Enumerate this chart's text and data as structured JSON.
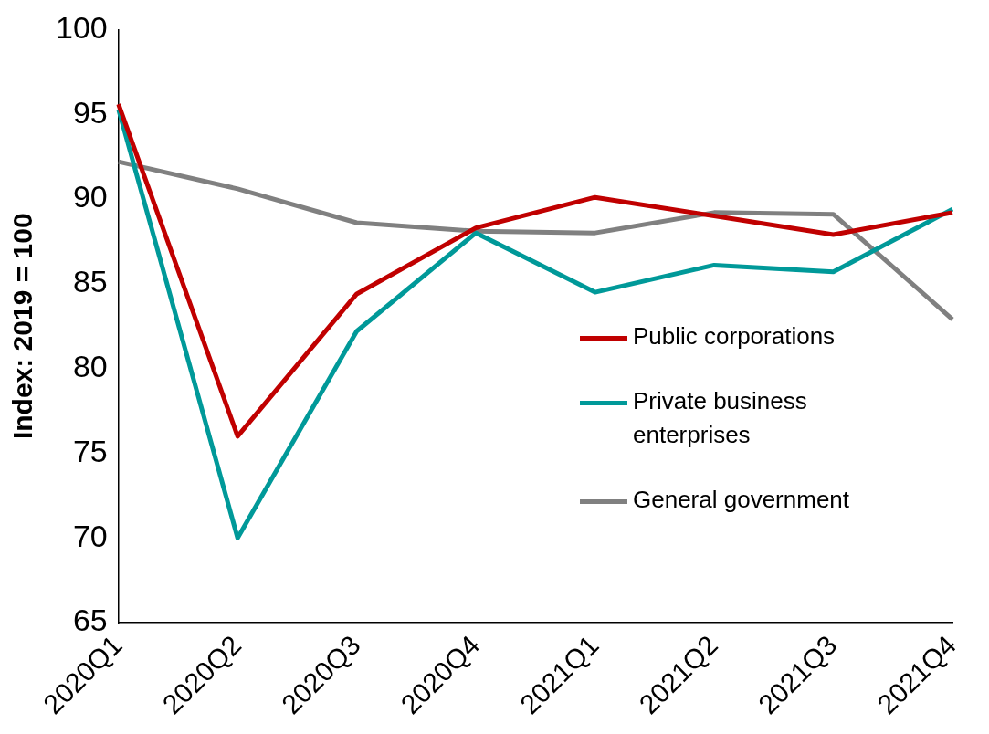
{
  "chart_data": {
    "type": "line",
    "ylabel": "Index: 2019 = 100",
    "categories": [
      "2020Q1",
      "2020Q2",
      "2020Q3",
      "2020Q4",
      "2021Q1",
      "2021Q2",
      "2021Q3",
      "2021Q4"
    ],
    "series": [
      {
        "name": "Public corporations",
        "color": "#c00000",
        "values": [
          95.6,
          76.0,
          84.4,
          88.3,
          90.1,
          89.0,
          87.9,
          89.2
        ]
      },
      {
        "name": "Private business enterprises",
        "color": "#009999",
        "values": [
          95.3,
          70.0,
          82.2,
          88.0,
          84.5,
          86.1,
          85.7,
          89.4
        ]
      },
      {
        "name": "General government",
        "color": "#808080",
        "values": [
          92.2,
          90.6,
          88.6,
          88.1,
          88.0,
          89.2,
          89.1,
          82.9
        ]
      }
    ],
    "ylim": [
      65,
      100
    ],
    "yticks": [
      65,
      70,
      75,
      80,
      85,
      90,
      95,
      100
    ],
    "grid": false,
    "legend": "right",
    "marker": "none",
    "line_style": "solid"
  }
}
